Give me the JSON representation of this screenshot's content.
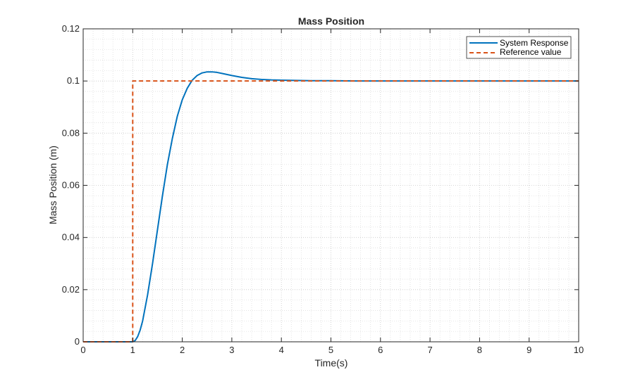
{
  "chart_data": {
    "type": "line",
    "title": "Mass Position",
    "xlabel": "Time(s)",
    "ylabel": "Mass Position (m)",
    "xlim": [
      0,
      10
    ],
    "ylim": [
      0,
      0.12
    ],
    "xticks": [
      "0",
      "1",
      "2",
      "3",
      "4",
      "5",
      "6",
      "7",
      "8",
      "9",
      "10"
    ],
    "yticks": [
      "0",
      "0.02",
      "0.04",
      "0.06",
      "0.08",
      "0.1",
      "0.12"
    ],
    "grid": true,
    "minor_grid": true,
    "legend_position": "top-right",
    "series": [
      {
        "name": "System Response",
        "color": "#0072BD",
        "style": "solid",
        "x": [
          0,
          1.0,
          1.05,
          1.1,
          1.15,
          1.2,
          1.3,
          1.4,
          1.5,
          1.6,
          1.7,
          1.8,
          1.9,
          2.0,
          2.1,
          2.2,
          2.3,
          2.4,
          2.5,
          2.6,
          2.7,
          2.8,
          3.0,
          3.2,
          3.4,
          3.6,
          3.8,
          4.0,
          4.3,
          4.6,
          5.0,
          5.5,
          6.0,
          7.0,
          8.0,
          9.0,
          10.0
        ],
        "y": [
          0,
          0,
          0.0005,
          0.002,
          0.0045,
          0.008,
          0.018,
          0.03,
          0.043,
          0.056,
          0.068,
          0.078,
          0.0865,
          0.0928,
          0.0972,
          0.1003,
          0.1021,
          0.1031,
          0.1035,
          0.1035,
          0.1033,
          0.1029,
          0.1021,
          0.1014,
          0.1009,
          0.1006,
          0.1004,
          0.1003,
          0.1002,
          0.1001,
          0.1001,
          0.1,
          0.1,
          0.1,
          0.1,
          0.1,
          0.1
        ]
      },
      {
        "name": "Reference value",
        "color": "#D95319",
        "style": "dashed",
        "x": [
          0,
          1.0,
          1.0,
          10.0
        ],
        "y": [
          0,
          0,
          0.1,
          0.1
        ]
      }
    ]
  }
}
